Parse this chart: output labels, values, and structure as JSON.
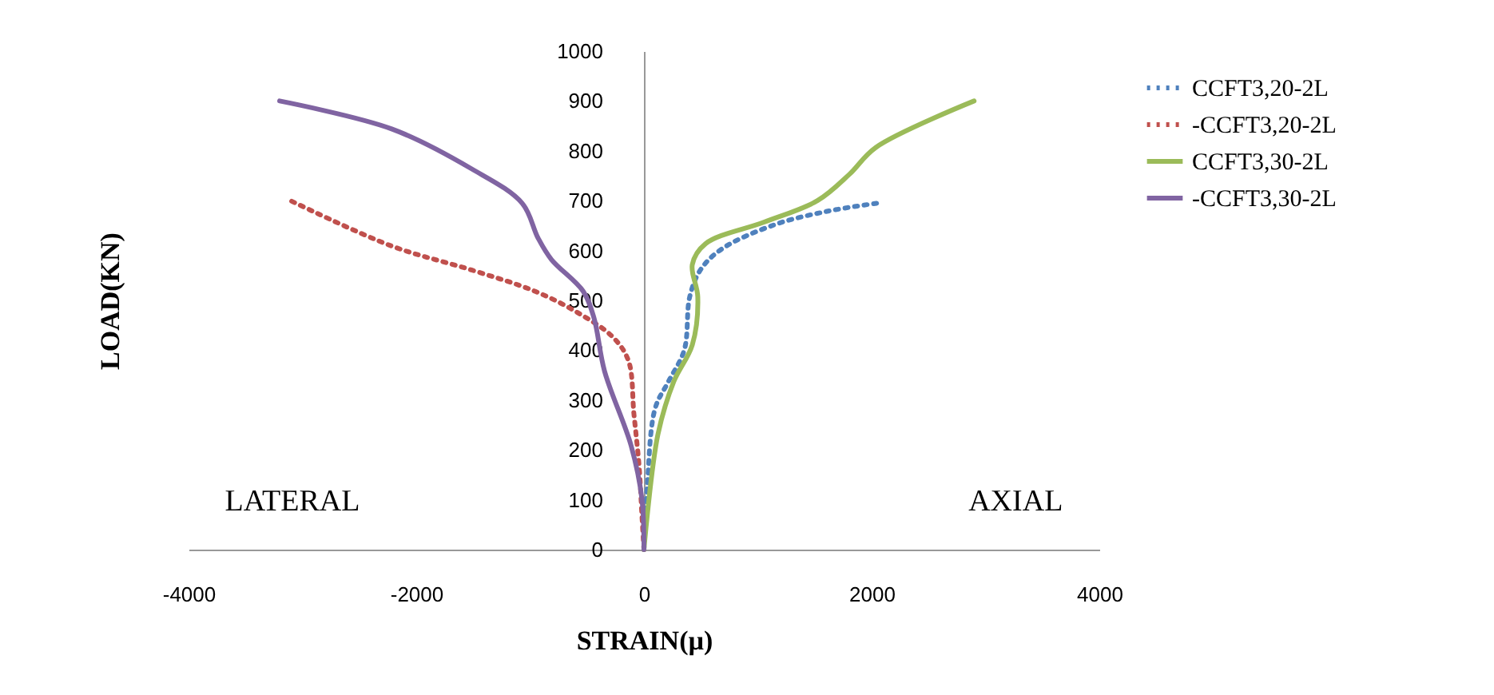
{
  "chart_data": {
    "type": "line",
    "xlabel": "STRAIN(µ)",
    "ylabel": "LOAD(KN)",
    "xlim": [
      -4000,
      4000
    ],
    "xticks": [
      -4000,
      -2000,
      0,
      2000,
      4000
    ],
    "ylim": [
      0,
      1000
    ],
    "yticks": [
      0,
      100,
      200,
      300,
      400,
      500,
      600,
      700,
      800,
      900,
      1000
    ],
    "grid": false,
    "legend": "right",
    "marker": "none",
    "annotations": [
      "LATERAL",
      "AXIAL"
    ],
    "series": [
      {
        "name": "CCFT3,20-2L",
        "color": "#4f81bd",
        "line_style": "dotted",
        "x": [
          0,
          28,
          98,
          215,
          355,
          402,
          496,
          683,
          1150,
          1617,
          2050
        ],
        "values": [
          0,
          123,
          283,
          337,
          401,
          507,
          561,
          603,
          652,
          679,
          695
        ]
      },
      {
        "name": "-CCFT3,20-2L",
        "color": "#c0504d",
        "line_style": "dotted",
        "x": [
          0,
          -18,
          -42,
          -88,
          -136,
          -276,
          -579,
          -954,
          -1515,
          -2216,
          -3104
        ],
        "values": [
          0,
          70,
          166,
          272,
          379,
          427,
          475,
          518,
          561,
          609,
          700
        ]
      },
      {
        "name": "CCFT3,30-2L",
        "color": "#9bbb59",
        "line_style": "solid",
        "x": [
          0,
          122,
          262,
          425,
          473,
          425,
          543,
          1056,
          1524,
          1805,
          2038,
          2900
        ],
        "values": [
          0,
          230,
          337,
          411,
          507,
          572,
          614,
          657,
          700,
          753,
          807,
          900
        ]
      },
      {
        "name": "-CCFT3,30-2L",
        "color": "#8064a2",
        "line_style": "solid",
        "x": [
          0,
          -18,
          -112,
          -346,
          -439,
          -533,
          -813,
          -930,
          -1070,
          -1515,
          -2216,
          -3200
        ],
        "values": [
          0,
          102,
          208,
          358,
          465,
          518,
          582,
          625,
          695,
          764,
          844,
          900
        ]
      }
    ]
  }
}
